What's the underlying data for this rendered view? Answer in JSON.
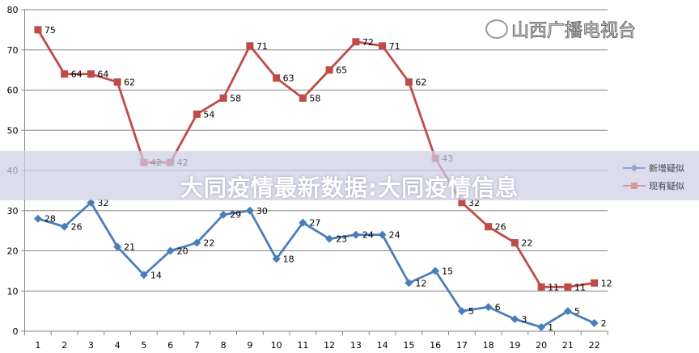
{
  "chart_data": {
    "type": "line",
    "title": "",
    "xlabel": "",
    "ylabel": "",
    "categories": [
      "1",
      "2",
      "3",
      "4",
      "5",
      "6",
      "7",
      "8",
      "9",
      "10",
      "11",
      "12",
      "13",
      "14",
      "15",
      "16",
      "17",
      "18",
      "19",
      "20",
      "21",
      "22"
    ],
    "ylim": [
      0,
      80
    ],
    "yticks": [
      "0",
      "10",
      "20",
      "30",
      "40",
      "50",
      "60",
      "70",
      "80"
    ],
    "grid": true,
    "legend_position": "right",
    "series": [
      {
        "name": "新增疑似",
        "color": "#4a7ebb",
        "marker": "diamond",
        "values": [
          28,
          26,
          32,
          21,
          14,
          20,
          22,
          29,
          30,
          18,
          27,
          23,
          24,
          24,
          12,
          15,
          5,
          6,
          3,
          1,
          5,
          2
        ]
      },
      {
        "name": "现有疑似",
        "color": "#be4b48",
        "marker": "square",
        "values": [
          75,
          64,
          64,
          62,
          42,
          42,
          54,
          58,
          71,
          63,
          58,
          65,
          72,
          71,
          62,
          43,
          32,
          26,
          22,
          11,
          11,
          12
        ]
      }
    ]
  },
  "overlay": {
    "title": "大同疫情最新数据:大同疫情信息",
    "watermark": "山西广播电视台"
  }
}
